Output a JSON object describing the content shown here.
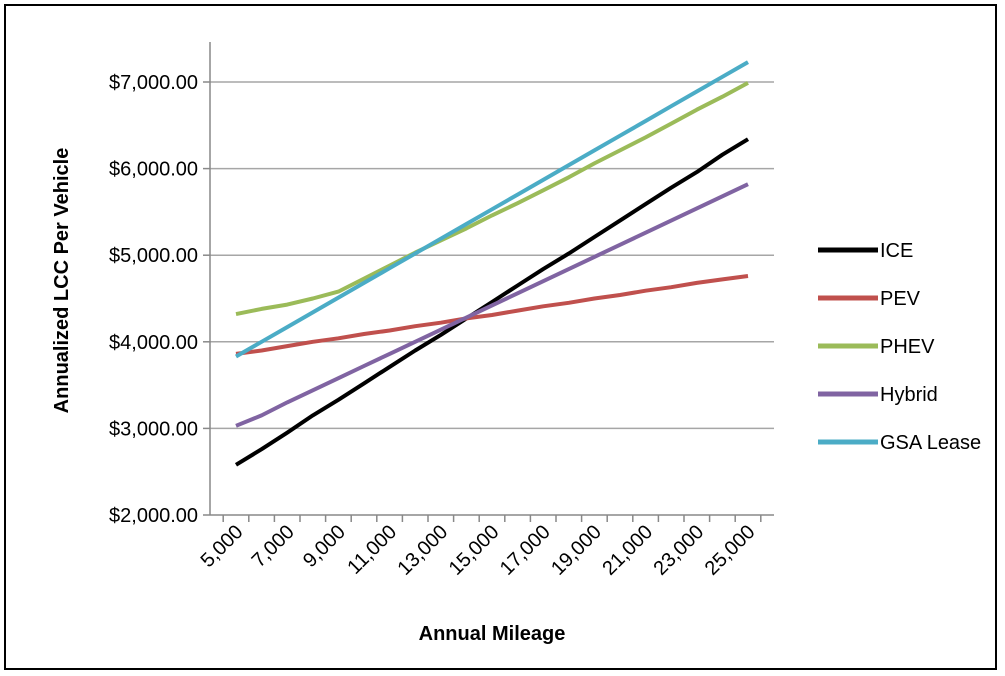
{
  "chart_data": {
    "type": "line",
    "title": "",
    "xlabel": "Annual Mileage",
    "ylabel": "Annualized LCC Per Vehicle",
    "xlim": [
      5000,
      25000
    ],
    "ylim": [
      2000,
      7000
    ],
    "x_ticks": [
      5000,
      7000,
      9000,
      11000,
      13000,
      15000,
      17000,
      19000,
      21000,
      23000,
      25000
    ],
    "x_tick_labels": [
      "5,000",
      "7,000",
      "9,000",
      "11,000",
      "13,000",
      "15,000",
      "17,000",
      "19,000",
      "21,000",
      "23,000",
      "25,000"
    ],
    "y_ticks": [
      2000,
      3000,
      4000,
      5000,
      6000,
      7000
    ],
    "y_tick_labels": [
      "$2,000.00",
      "$3,000.00",
      "$4,000.00",
      "$5,000.00",
      "$6,000.00",
      "$7,000.00"
    ],
    "grid": "horizontal",
    "legend_position": "right",
    "x": [
      5000,
      6000,
      7000,
      8000,
      9000,
      10000,
      11000,
      12000,
      13000,
      14000,
      15000,
      16000,
      17000,
      18000,
      19000,
      20000,
      21000,
      22000,
      23000,
      24000,
      25000
    ],
    "series": [
      {
        "name": "ICE",
        "color": "#000000",
        "values": [
          2580,
          2760,
          2950,
          3150,
          3330,
          3520,
          3710,
          3900,
          4080,
          4270,
          4460,
          4650,
          4840,
          5020,
          5210,
          5400,
          5590,
          5780,
          5960,
          6160,
          6340
        ]
      },
      {
        "name": "PEV",
        "color": "#C0504D",
        "values": [
          3860,
          3900,
          3950,
          4000,
          4040,
          4090,
          4130,
          4180,
          4220,
          4270,
          4310,
          4360,
          4410,
          4450,
          4500,
          4540,
          4590,
          4630,
          4680,
          4720,
          4760
        ]
      },
      {
        "name": "PHEV",
        "color": "#9BBB59",
        "values": [
          4320,
          4380,
          4430,
          4500,
          4580,
          4730,
          4880,
          5030,
          5170,
          5310,
          5460,
          5600,
          5750,
          5900,
          6060,
          6210,
          6360,
          6520,
          6680,
          6830,
          6990
        ]
      },
      {
        "name": "Hybrid",
        "color": "#8064A2",
        "values": [
          3030,
          3150,
          3300,
          3440,
          3580,
          3720,
          3860,
          4000,
          4140,
          4280,
          4420,
          4560,
          4700,
          4840,
          4980,
          5120,
          5260,
          5400,
          5540,
          5680,
          5820
        ]
      },
      {
        "name": "GSA Lease",
        "color": "#4BACC6",
        "values": [
          3830,
          4000,
          4170,
          4340,
          4510,
          4680,
          4850,
          5020,
          5190,
          5360,
          5530,
          5700,
          5870,
          6040,
          6210,
          6380,
          6550,
          6720,
          6890,
          7060,
          7230
        ]
      }
    ]
  }
}
